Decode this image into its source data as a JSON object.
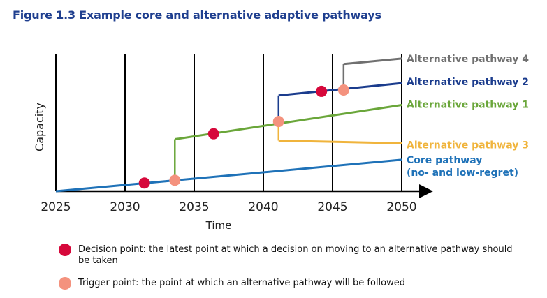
{
  "title": "Figure 1.3 Example core and alternative adaptive pathways",
  "colors": {
    "axis": "#000000",
    "core": "#1f72b8",
    "alt1": "#6aa63a",
    "alt2": "#1b3c8d",
    "alt3": "#f0b43c",
    "alt4": "#707070",
    "decision": "#d6083b",
    "trigger": "#f4927e",
    "title": "#1f3f8f"
  },
  "chart_data": {
    "type": "line",
    "xlabel": "Time",
    "ylabel": "Capacity",
    "x_ticks": [
      2025,
      2030,
      2035,
      2040,
      2045,
      2050
    ],
    "xlim": [
      2025,
      2050
    ],
    "ylim": [
      0,
      100
    ],
    "series": [
      {
        "key": "core",
        "name": "Core pathway (no- and low-regret)",
        "label_lines": [
          "Core pathway",
          "(no- and low-regret)"
        ],
        "color": "#1f72b8",
        "points": [
          [
            2025,
            0
          ],
          [
            2050,
            23
          ]
        ]
      },
      {
        "key": "alt1",
        "name": "Alternative pathway 1",
        "label_lines": [
          "Alternative pathway 1"
        ],
        "color": "#6aa63a",
        "points": [
          [
            2033.6,
            38
          ],
          [
            2050,
            63
          ]
        ]
      },
      {
        "key": "alt2",
        "name": "Alternative pathway 2",
        "label_lines": [
          "Alternative pathway 2"
        ],
        "color": "#1b3c8d",
        "points": [
          [
            2041.1,
            70
          ],
          [
            2050,
            79
          ]
        ]
      },
      {
        "key": "alt3",
        "name": "Alternative pathway 3",
        "label_lines": [
          "Alternative pathway 3"
        ],
        "color": "#f0b43c",
        "points": [
          [
            2041.1,
            37
          ],
          [
            2050,
            35
          ]
        ]
      },
      {
        "key": "alt4",
        "name": "Alternative pathway 4",
        "label_lines": [
          "Alternative pathway 4"
        ],
        "color": "#707070",
        "points": [
          [
            2045.8,
            93
          ],
          [
            2050,
            97
          ]
        ]
      }
    ],
    "decision_points": [
      [
        2031.4,
        6
      ],
      [
        2036.4,
        42
      ],
      [
        2044.2,
        73
      ]
    ],
    "trigger_points": [
      [
        2033.6,
        8
      ],
      [
        2041.1,
        51
      ],
      [
        2045.8,
        74
      ]
    ]
  },
  "legend": [
    {
      "key": "decision",
      "text": "Decision point: the latest point at which a decision on moving to an alternative pathway should be taken"
    },
    {
      "key": "trigger",
      "text": "Trigger point: the point at which an alternative pathway will be followed"
    }
  ]
}
